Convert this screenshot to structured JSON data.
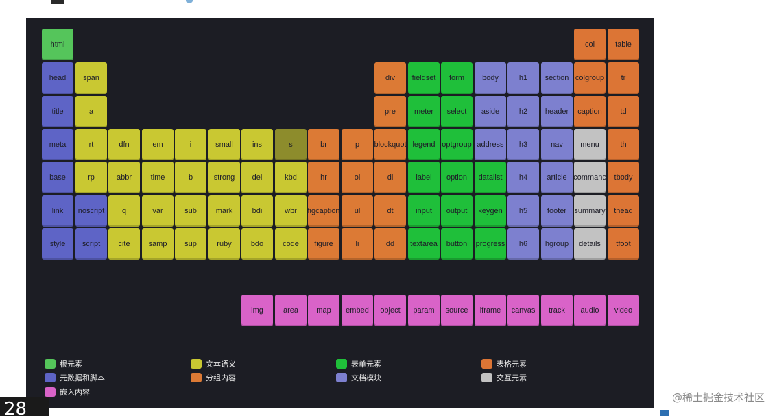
{
  "elements": {
    "root": [
      "html"
    ],
    "meta": [
      "head",
      "title",
      "meta",
      "base",
      "link",
      "style",
      "script",
      "noscript"
    ],
    "text": [
      "span",
      "a",
      "rt",
      "rp",
      "dfn",
      "abbr",
      "q",
      "cite",
      "em",
      "time",
      "var",
      "samp",
      "i",
      "b",
      "sub",
      "sup",
      "small",
      "strong",
      "mark",
      "ruby",
      "ins",
      "del",
      "bdi",
      "bdo",
      "s",
      "kbd",
      "wbr",
      "code"
    ],
    "group": [
      "div",
      "pre",
      "blockquot",
      "p",
      "br",
      "hr",
      "ol",
      "dl",
      "ul",
      "dt",
      "dd",
      "li",
      "figure",
      "figcaption"
    ],
    "form": [
      "fieldset",
      "form",
      "meter",
      "select",
      "legend",
      "optgroup",
      "label",
      "option",
      "datalist",
      "input",
      "output",
      "keygen",
      "textarea",
      "button",
      "progress"
    ],
    "doc": [
      "body",
      "h1",
      "h2",
      "h3",
      "h4",
      "h5",
      "h6",
      "aside",
      "address",
      "section",
      "header",
      "nav",
      "article",
      "footer",
      "hgroup"
    ],
    "table": [
      "col",
      "table",
      "colgroup",
      "tr",
      "caption",
      "td",
      "th",
      "tbody",
      "thead",
      "tfoot"
    ],
    "inter": [
      "menu",
      "commanc",
      "summary",
      "details"
    ],
    "embed": [
      "img",
      "area",
      "map",
      "embed",
      "object",
      "param",
      "source",
      "iframe",
      "canvas",
      "track",
      "audio",
      "video"
    ]
  },
  "legend": {
    "root": "根元素",
    "meta": "元数据和脚本",
    "embed": "嵌入内容",
    "text": "文本语义",
    "group": "分组内容",
    "form": "表单元素",
    "doc": "文档模块",
    "table": "表格元素",
    "inter": "交互元素"
  },
  "colors": {
    "root": "#55c55b",
    "meta": "#5e64c6",
    "text": "#c9c832",
    "group": "#dc7a35",
    "form": "#1fbf3a",
    "doc": "#7d80cf",
    "table": "#dc7535",
    "inter": "#c2c2c2",
    "embed": "#d963c8"
  },
  "page_number": "28",
  "watermark_site": "@稀土掘金技术社区"
}
